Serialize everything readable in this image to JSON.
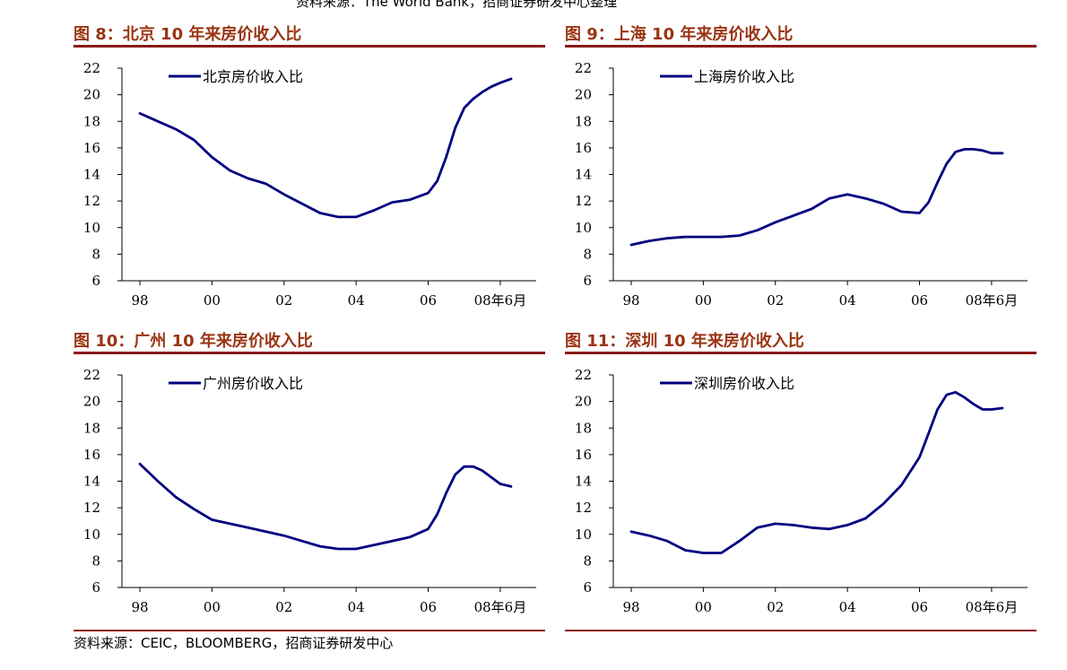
{
  "top_note": "资料来源：The World Bank，招商证券研发中心整理",
  "source_note": "资料来源：CEIC，BLOOMBERG，招商证券研发中心",
  "line_color": "#000080",
  "chart_data": [
    {
      "type": "line",
      "title": "图  8：北京 10 年来房价收入比",
      "series_name": "北京房价收入比",
      "ylim": [
        6,
        22
      ],
      "yticks": [
        "6",
        "8",
        "10",
        "12",
        "14",
        "16",
        "18",
        "20",
        "22"
      ],
      "xlim": [
        1998,
        2008.5
      ],
      "xticks": [
        {
          "value": 1998,
          "label": "98"
        },
        {
          "value": 2000,
          "label": "00"
        },
        {
          "value": 2002,
          "label": "02"
        },
        {
          "value": 2004,
          "label": "04"
        },
        {
          "value": 2006,
          "label": "06"
        },
        {
          "value": 2008,
          "label": "08年6月"
        }
      ],
      "x": [
        1998,
        1998.5,
        1999,
        1999.5,
        2000,
        2000.5,
        2001,
        2001.5,
        2002,
        2002.5,
        2003,
        2003.5,
        2004,
        2004.5,
        2005,
        2005.5,
        2006,
        2006.25,
        2006.5,
        2006.75,
        2007,
        2007.25,
        2007.5,
        2007.75,
        2008,
        2008.3
      ],
      "values": [
        18.6,
        18.0,
        17.4,
        16.6,
        15.3,
        14.3,
        13.7,
        13.3,
        12.5,
        11.8,
        11.1,
        10.8,
        10.8,
        11.3,
        11.9,
        12.1,
        12.6,
        13.5,
        15.3,
        17.5,
        19.0,
        19.7,
        20.2,
        20.6,
        20.9,
        21.2
      ]
    },
    {
      "type": "line",
      "title": "图  9：上海 10 年来房价收入比",
      "series_name": "上海房价收入比",
      "ylim": [
        6,
        22
      ],
      "yticks": [
        "6",
        "8",
        "10",
        "12",
        "14",
        "16",
        "18",
        "20",
        "22"
      ],
      "xlim": [
        1998,
        2008.5
      ],
      "xticks": [
        {
          "value": 1998,
          "label": "98"
        },
        {
          "value": 2000,
          "label": "00"
        },
        {
          "value": 2002,
          "label": "02"
        },
        {
          "value": 2004,
          "label": "04"
        },
        {
          "value": 2006,
          "label": "06"
        },
        {
          "value": 2008,
          "label": "08年6月"
        }
      ],
      "x": [
        1998,
        1998.5,
        1999,
        1999.5,
        2000,
        2000.5,
        2001,
        2001.5,
        2002,
        2002.5,
        2003,
        2003.5,
        2004,
        2004.5,
        2005,
        2005.5,
        2006,
        2006.25,
        2006.5,
        2006.75,
        2007,
        2007.25,
        2007.5,
        2007.75,
        2008,
        2008.3
      ],
      "values": [
        8.7,
        9.0,
        9.2,
        9.3,
        9.3,
        9.3,
        9.4,
        9.8,
        10.4,
        10.9,
        11.4,
        12.2,
        12.5,
        12.2,
        11.8,
        11.2,
        11.1,
        11.9,
        13.4,
        14.8,
        15.7,
        15.9,
        15.9,
        15.8,
        15.6,
        15.6
      ]
    },
    {
      "type": "line",
      "title": "图  10：广州 10 年来房价收入比",
      "series_name": "广州房价收入比",
      "ylim": [
        6,
        22
      ],
      "yticks": [
        "6",
        "8",
        "10",
        "12",
        "14",
        "16",
        "18",
        "20",
        "22"
      ],
      "xlim": [
        1998,
        2008.5
      ],
      "xticks": [
        {
          "value": 1998,
          "label": "98"
        },
        {
          "value": 2000,
          "label": "00"
        },
        {
          "value": 2002,
          "label": "02"
        },
        {
          "value": 2004,
          "label": "04"
        },
        {
          "value": 2006,
          "label": "06"
        },
        {
          "value": 2008,
          "label": "08年6月"
        }
      ],
      "x": [
        1998,
        1998.5,
        1999,
        1999.5,
        2000,
        2000.5,
        2001,
        2001.5,
        2002,
        2002.5,
        2003,
        2003.5,
        2004,
        2004.5,
        2005,
        2005.5,
        2006,
        2006.25,
        2006.5,
        2006.75,
        2007,
        2007.25,
        2007.5,
        2007.75,
        2008,
        2008.3
      ],
      "values": [
        15.3,
        14.0,
        12.8,
        11.9,
        11.1,
        10.8,
        10.5,
        10.2,
        9.9,
        9.5,
        9.1,
        8.9,
        8.9,
        9.2,
        9.5,
        9.8,
        10.4,
        11.5,
        13.1,
        14.5,
        15.1,
        15.1,
        14.8,
        14.3,
        13.8,
        13.6
      ]
    },
    {
      "type": "line",
      "title": "图  11：深圳 10 年来房价收入比",
      "series_name": "深圳房价收入比",
      "ylim": [
        6,
        22
      ],
      "yticks": [
        "6",
        "8",
        "10",
        "12",
        "14",
        "16",
        "18",
        "20",
        "22"
      ],
      "xlim": [
        1998,
        2008.5
      ],
      "xticks": [
        {
          "value": 1998,
          "label": "98"
        },
        {
          "value": 2000,
          "label": "00"
        },
        {
          "value": 2002,
          "label": "02"
        },
        {
          "value": 2004,
          "label": "04"
        },
        {
          "value": 2006,
          "label": "06"
        },
        {
          "value": 2008,
          "label": "08年6月"
        }
      ],
      "x": [
        1998,
        1998.5,
        1999,
        1999.5,
        2000,
        2000.5,
        2001,
        2001.5,
        2002,
        2002.5,
        2003,
        2003.5,
        2004,
        2004.5,
        2005,
        2005.5,
        2006,
        2006.25,
        2006.5,
        2006.75,
        2007,
        2007.25,
        2007.5,
        2007.75,
        2008,
        2008.3
      ],
      "values": [
        10.2,
        9.9,
        9.5,
        8.8,
        8.6,
        8.6,
        9.5,
        10.5,
        10.8,
        10.7,
        10.5,
        10.4,
        10.7,
        11.2,
        12.3,
        13.7,
        15.8,
        17.6,
        19.4,
        20.5,
        20.7,
        20.3,
        19.8,
        19.4,
        19.4,
        19.5
      ]
    }
  ]
}
